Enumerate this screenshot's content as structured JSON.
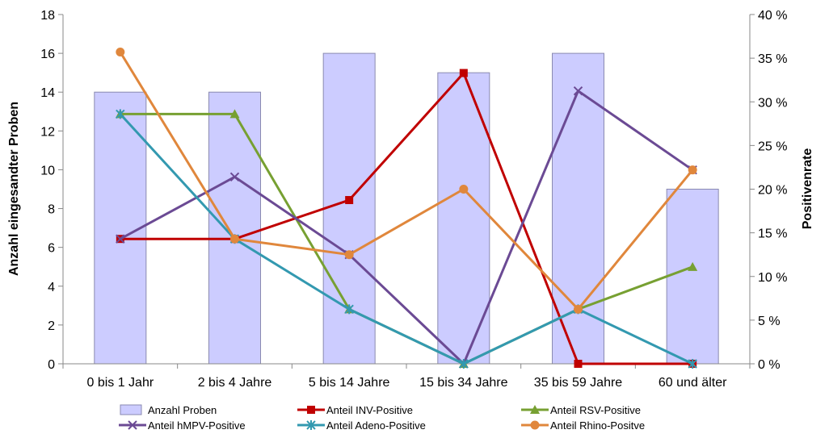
{
  "chart_data": {
    "type": "bar",
    "categories": [
      "0 bis 1 Jahr",
      "2 bis 4 Jahre",
      "5 bis 14 Jahre",
      "15 bis 34 Jahre",
      "35 bis 59 Jahre",
      "60 und älter"
    ],
    "bar_series": {
      "name": "Anzahl Proben",
      "values": [
        14,
        14,
        16,
        15,
        16,
        9
      ],
      "color": "#ccccff",
      "axis": "left"
    },
    "line_series": [
      {
        "name": "Anteil INV-Positive",
        "values": [
          14.3,
          14.3,
          18.75,
          33.3,
          0,
          0
        ],
        "color": "#c00000",
        "marker": "square"
      },
      {
        "name": "Anteil RSV-Positive",
        "values": [
          28.6,
          28.6,
          6.25,
          0,
          6.25,
          11.1
        ],
        "color": "#77a032",
        "marker": "triangle"
      },
      {
        "name": "Anteil hMPV-Positive",
        "values": [
          14.3,
          21.4,
          12.5,
          0,
          31.25,
          22.2
        ],
        "color": "#6b4a94",
        "marker": "x"
      },
      {
        "name": "Anteil Adeno-Positive",
        "values": [
          28.6,
          14.3,
          6.25,
          0,
          6.25,
          0
        ],
        "color": "#3399b0",
        "marker": "star"
      },
      {
        "name": "Anteil Rhino-Positve",
        "values": [
          35.7,
          14.3,
          12.5,
          20,
          6.25,
          22.2
        ],
        "color": "#e0873c",
        "marker": "circle"
      }
    ],
    "y_left": {
      "label": "Anzahl eingesandter Proben",
      "min": 0,
      "max": 18,
      "step": 2,
      "ticks": [
        "0",
        "2",
        "4",
        "6",
        "8",
        "10",
        "12",
        "14",
        "16",
        "18"
      ]
    },
    "y_right": {
      "label": "Positivenrate",
      "min": 0,
      "max": 40,
      "step": 5,
      "ticks": [
        "0 %",
        "5 %",
        "10 %",
        "15 %",
        "20 %",
        "25 %",
        "30 %",
        "35 %",
        "40 %"
      ]
    },
    "grid": false,
    "legend_position": "bottom"
  }
}
